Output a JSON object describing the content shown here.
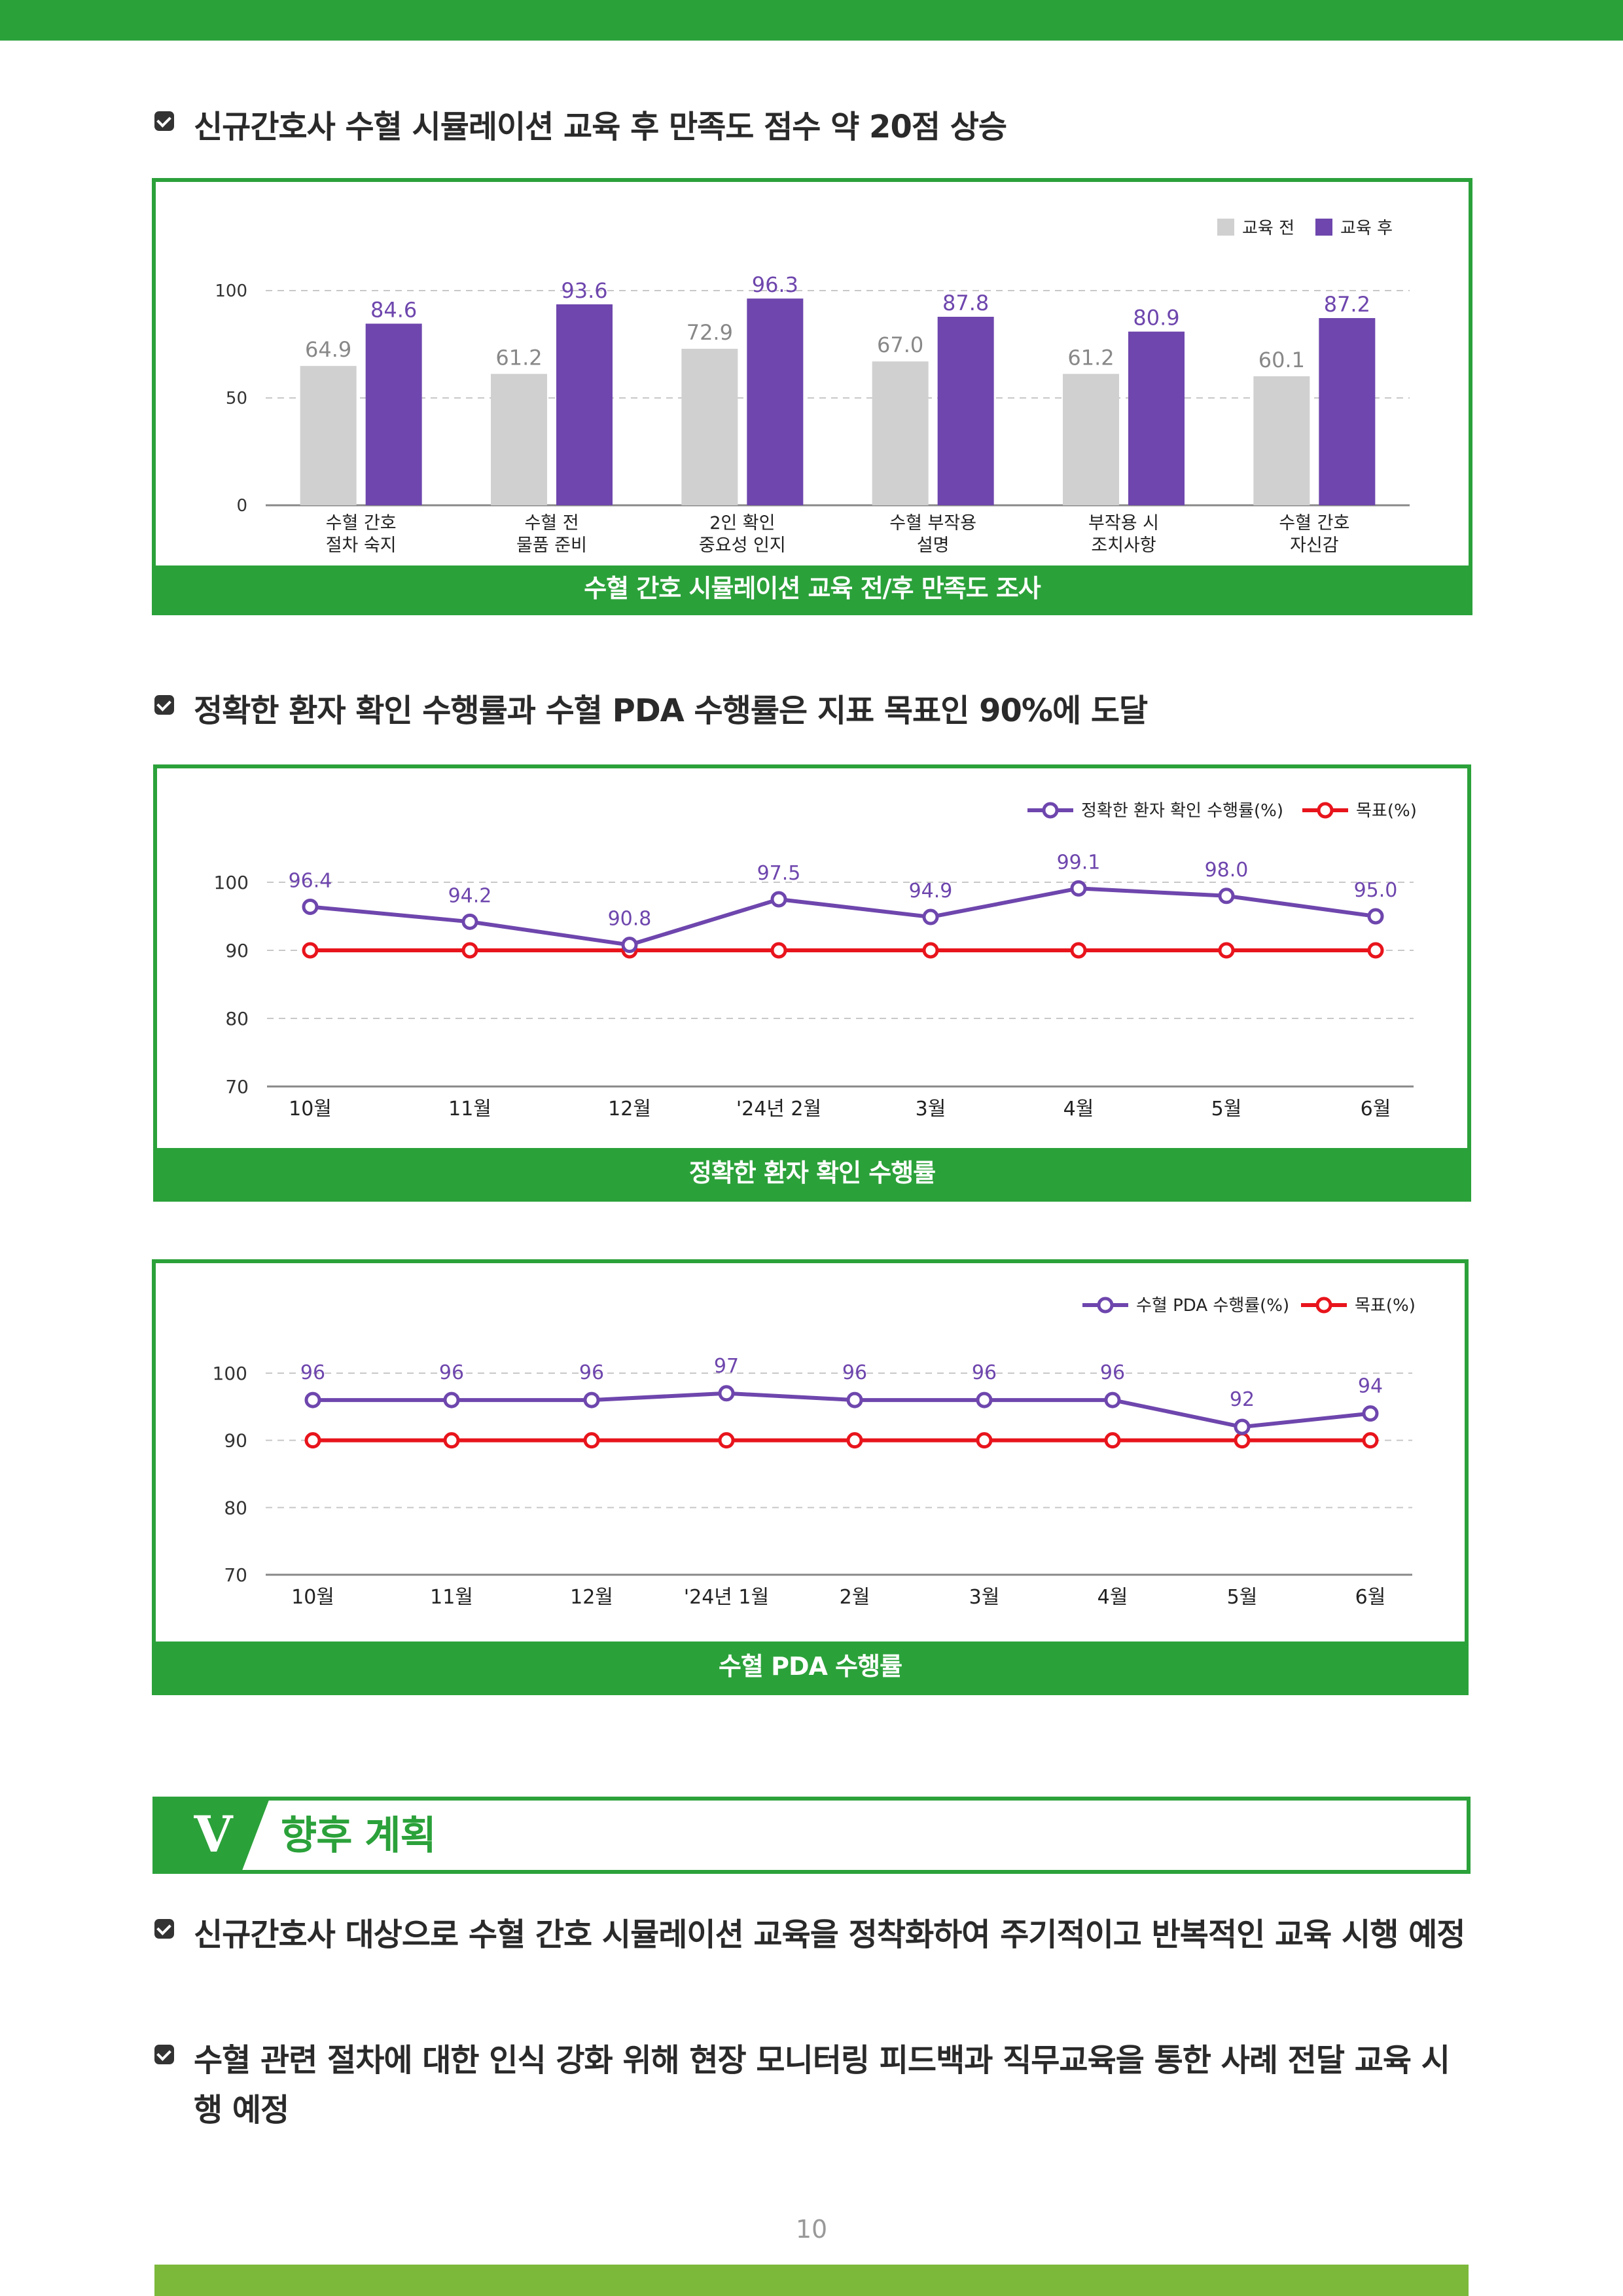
{
  "headings": {
    "h1": "신규간호사 수혈 시뮬레이션 교육 후 만족도 점수 약 20점 상승",
    "h2": "정확한 환자 확인 수행률과 수혈 PDA 수행률은 지표 목표인 90%에 도달"
  },
  "section": {
    "number": "V",
    "title": "향후 계획",
    "bullets": [
      "신규간호사 대상으로 수혈 간호 시뮬레이션 교육을 정착화하여 주기적이고 반복적인 교육 시행 예정",
      "수혈 관련 절차에 대한 인식 강화 위해 현장 모니터링 피드백과 직무교육을 통한 사례 전달 교육 시행 예정"
    ]
  },
  "page_number": "10",
  "colors": {
    "green": "#2ba13a",
    "lime": "#7cb83a",
    "purple": "#6e46ad",
    "gray_bar": "#d0d0d0",
    "red": "#e8141c"
  },
  "chart_data": [
    {
      "type": "bar",
      "caption": "수혈 간호 시뮬레이션 교육 전/후 만족도 조사",
      "categories": [
        [
          "수혈 간호",
          "절차 숙지"
        ],
        [
          "수혈 전",
          "물품 준비"
        ],
        [
          "2인 확인",
          "중요성 인지"
        ],
        [
          "수혈 부작용",
          "설명"
        ],
        [
          "부작용 시",
          "조치사항"
        ],
        [
          "수혈 간호",
          "자신감"
        ]
      ],
      "series": [
        {
          "name": "교육 전",
          "values": [
            64.9,
            61.2,
            72.9,
            67.0,
            61.2,
            60.1
          ],
          "labels": [
            "64.9",
            "61.2",
            "72.9",
            "67.0",
            "61.2",
            "60.1"
          ],
          "color": "#d0d0d0"
        },
        {
          "name": "교육 후",
          "values": [
            84.6,
            93.6,
            96.3,
            87.8,
            80.9,
            87.2
          ],
          "labels": [
            "84.6",
            "93.6",
            "96.3",
            "87.8",
            "80.9",
            "87.2"
          ],
          "color": "#6e46ad"
        }
      ],
      "yticks": [
        "0",
        "50",
        "100"
      ],
      "ylim": [
        0,
        100
      ],
      "grid": true,
      "legend": "top-right"
    },
    {
      "type": "line",
      "caption": "정확한 환자 확인 수행률",
      "categories": [
        "10월",
        "11월",
        "12월",
        "'24년 2월",
        "3월",
        "4월",
        "5월",
        "6월"
      ],
      "series": [
        {
          "name": "정확한 환자 확인 수행률(%)",
          "values": [
            96.4,
            94.2,
            90.8,
            97.5,
            94.9,
            99.1,
            98.0,
            95.0
          ],
          "labels": [
            "96.4",
            "94.2",
            "90.8",
            "97.5",
            "94.9",
            "99.1",
            "98.0",
            "95.0"
          ],
          "color": "#6e46ad"
        },
        {
          "name": "목표(%)",
          "values": [
            90,
            90,
            90,
            90,
            90,
            90,
            90,
            90
          ],
          "color": "#e8141c"
        }
      ],
      "yticks": [
        "70",
        "80",
        "90",
        "100"
      ],
      "ylim": [
        70,
        100
      ],
      "grid": true,
      "legend": "top-right"
    },
    {
      "type": "line",
      "caption": "수혈 PDA 수행률",
      "categories": [
        "10월",
        "11월",
        "12월",
        "'24년 1월",
        "2월",
        "3월",
        "4월",
        "5월",
        "6월"
      ],
      "series": [
        {
          "name": "수혈 PDA 수행률(%)",
          "values": [
            96,
            96,
            96,
            97,
            96,
            96,
            96,
            92,
            94
          ],
          "labels": [
            "96",
            "96",
            "96",
            "97",
            "96",
            "96",
            "96",
            "92",
            "94"
          ],
          "color": "#6e46ad"
        },
        {
          "name": "목표(%)",
          "values": [
            90,
            90,
            90,
            90,
            90,
            90,
            90,
            90,
            90
          ],
          "color": "#e8141c"
        }
      ],
      "yticks": [
        "70",
        "80",
        "90",
        "100"
      ],
      "ylim": [
        70,
        100
      ],
      "grid": true,
      "legend": "top-right"
    }
  ]
}
